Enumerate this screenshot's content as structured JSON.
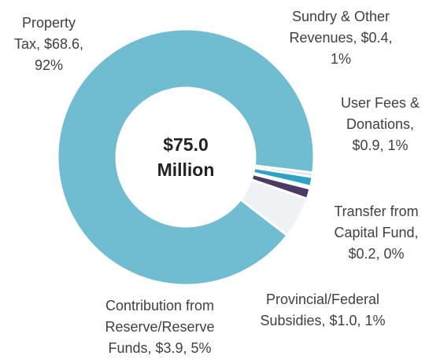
{
  "chart_data": {
    "type": "donut",
    "center_label": "$75.0 Million",
    "categories": [
      "Sundry & Other Revenues",
      "User Fees & Donations",
      "Transfer from Capital Fund",
      "Provincial/Federal Subsidies",
      "Contribution from Reserve/Reserve Funds",
      "Property Tax"
    ],
    "values": [
      0.4,
      0.9,
      0.2,
      1.0,
      3.9,
      68.6
    ],
    "labels": [
      "Sundry & Other Revenues, $0.4, 1%",
      "User Fees & Donations, $0.9, 1%",
      "Transfer from Capital Fund, $0.2, 0%",
      "Provincial/Federal Subsidies, $1.0, 1%",
      "Contribution from Reserve/Reserve Funds, $3.9, 5%",
      "Property Tax, $68.6, 92%"
    ],
    "colors": [
      "#d9e1ea",
      "#2fa3c4",
      "#c55a11",
      "#4b3a62",
      "#eef2f5",
      "#70bdd1"
    ]
  }
}
